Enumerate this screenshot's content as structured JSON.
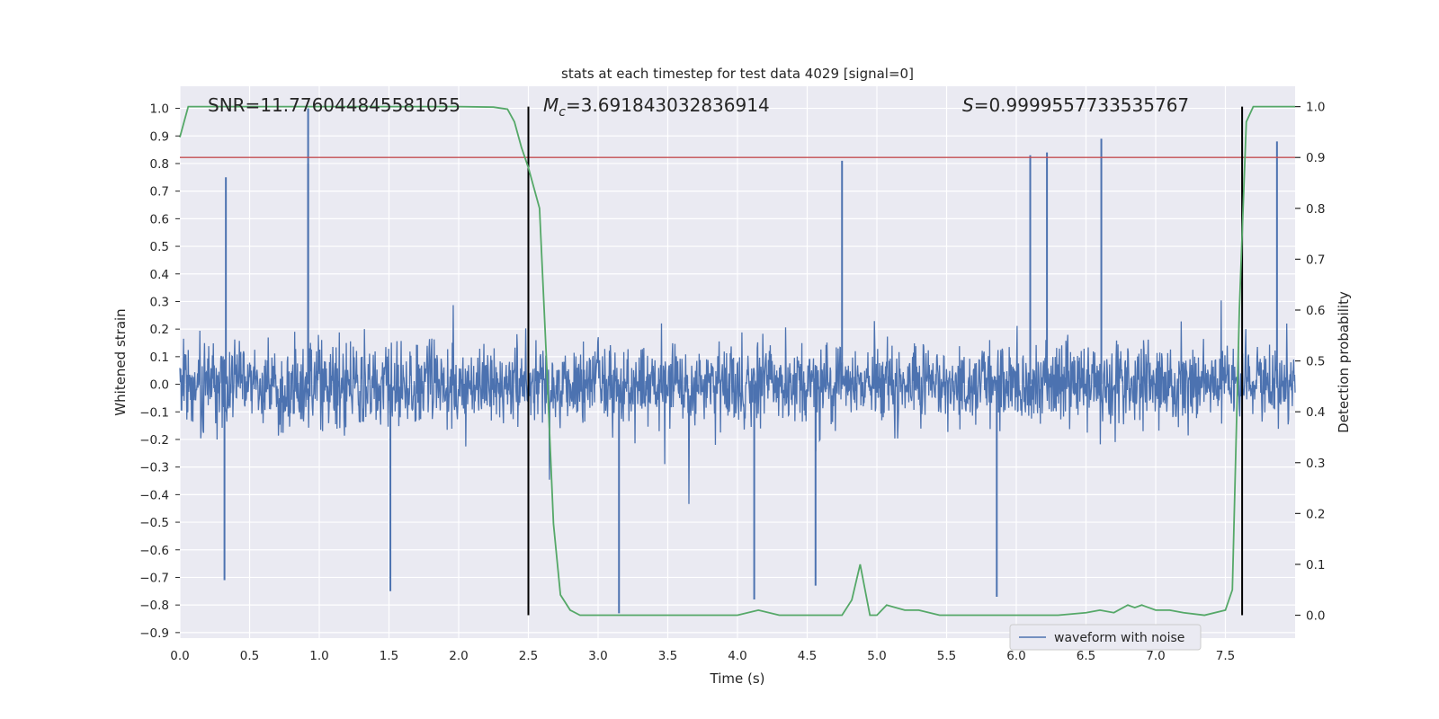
{
  "chart_data": {
    "type": "line",
    "title": "stats at each timestep for test data 4029 [signal=0]",
    "xlabel": "Time (s)",
    "ylabel_left": "Whitened strain",
    "ylabel_right": "Detection probability",
    "xlim": [
      0.0,
      8.0
    ],
    "ylim_left": [
      -0.92,
      1.08
    ],
    "ylim_right": [
      -0.045,
      1.04
    ],
    "x_ticks": [
      "0.0",
      "0.5",
      "1.0",
      "1.5",
      "2.0",
      "2.5",
      "3.0",
      "3.5",
      "4.0",
      "4.5",
      "5.0",
      "5.5",
      "6.0",
      "6.5",
      "7.0",
      "7.5"
    ],
    "y_left_ticks": [
      "1.0",
      "0.9",
      "0.8",
      "0.7",
      "0.6",
      "0.5",
      "0.4",
      "0.3",
      "0.2",
      "0.1",
      "0.0",
      "−0.1",
      "−0.2",
      "−0.3",
      "−0.4",
      "−0.5",
      "−0.6",
      "−0.7",
      "−0.8",
      "−0.9"
    ],
    "y_right_ticks": [
      "1.0",
      "0.9",
      "0.8",
      "0.7",
      "0.6",
      "0.5",
      "0.4",
      "0.3",
      "0.2",
      "0.1",
      "0.0"
    ],
    "grid": true,
    "annotations": {
      "snr_prefix": "SNR=",
      "snr_value": "11.776044845581055",
      "mc_symbol": "M",
      "mc_sub": "c",
      "mc_value": "=3.691843032836914",
      "s_symbol": "S",
      "s_value": "=0.9999557733535767"
    },
    "threshold": 0.9,
    "vlines_x": [
      2.5,
      7.62
    ],
    "legend": {
      "placement": "lower-right",
      "entries": [
        "waveform with noise"
      ]
    },
    "colors": {
      "waveform": "#4c72b0",
      "probability": "#55a868",
      "threshold": "#c44e52",
      "vlines": "#000000",
      "background": "#eaeaf2",
      "grid": "#ffffff"
    },
    "series": [
      {
        "name": "waveform with noise",
        "kind": "noise",
        "envelope_typical": 0.3,
        "notable_peaks": [
          {
            "x": 0.92,
            "y": 1.0
          },
          {
            "x": 0.92,
            "y": 0.8
          },
          {
            "x": 0.33,
            "y": 0.75
          },
          {
            "x": 0.32,
            "y": -0.71
          },
          {
            "x": 1.51,
            "y": -0.75
          },
          {
            "x": 3.15,
            "y": -0.83
          },
          {
            "x": 4.75,
            "y": 0.81
          },
          {
            "x": 6.61,
            "y": 0.89
          },
          {
            "x": 7.87,
            "y": 0.88
          },
          {
            "x": 6.1,
            "y": 0.83
          },
          {
            "x": 6.22,
            "y": 0.84
          },
          {
            "x": 5.86,
            "y": -0.77
          },
          {
            "x": 4.12,
            "y": -0.78
          },
          {
            "x": 4.56,
            "y": -0.73
          }
        ]
      },
      {
        "name": "",
        "kind": "probability",
        "x": [
          0.0,
          0.06,
          0.3,
          0.6,
          1.0,
          1.5,
          2.0,
          2.25,
          2.35,
          2.4,
          2.45,
          2.5,
          2.58,
          2.63,
          2.68,
          2.73,
          2.8,
          2.87,
          3.0,
          3.15,
          3.5,
          3.8,
          4.0,
          4.15,
          4.3,
          4.5,
          4.75,
          4.82,
          4.88,
          4.95,
          5.0,
          5.07,
          5.2,
          5.3,
          5.45,
          5.6,
          6.0,
          6.3,
          6.5,
          6.6,
          6.7,
          6.8,
          6.85,
          6.9,
          6.95,
          7.0,
          7.1,
          7.2,
          7.35,
          7.5,
          7.55,
          7.6,
          7.65,
          7.7,
          7.8,
          8.0
        ],
        "y": [
          0.94,
          1.0,
          1.0,
          1.0,
          1.0,
          1.0,
          1.0,
          0.999,
          0.995,
          0.97,
          0.92,
          0.88,
          0.8,
          0.5,
          0.18,
          0.04,
          0.01,
          0.0,
          0.0,
          0.0,
          0.0,
          0.0,
          0.0,
          0.01,
          0.0,
          0.0,
          0.0,
          0.03,
          0.1,
          0.0,
          0.0,
          0.02,
          0.01,
          0.01,
          0.0,
          0.0,
          0.0,
          0.0,
          0.005,
          0.01,
          0.005,
          0.02,
          0.015,
          0.02,
          0.015,
          0.01,
          0.01,
          0.005,
          0.0,
          0.01,
          0.05,
          0.6,
          0.97,
          1.0,
          1.0,
          1.0
        ]
      }
    ]
  }
}
